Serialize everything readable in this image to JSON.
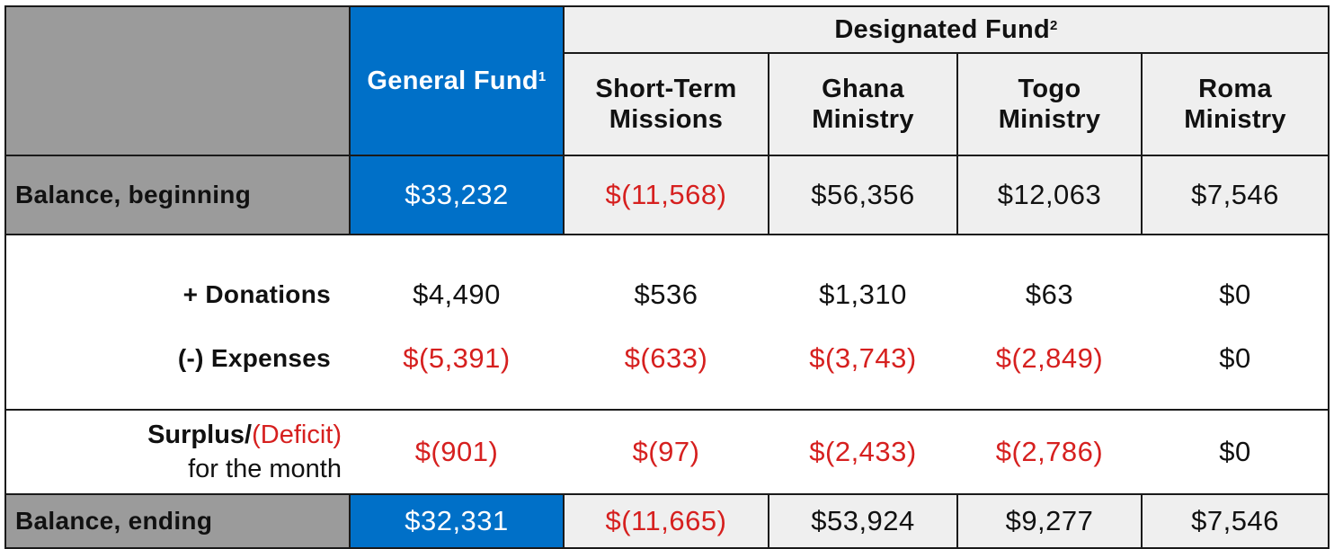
{
  "header": {
    "designated_fund": "Designated Fund",
    "designated_fund_sup": "2",
    "general_fund": "General Fund",
    "general_fund_sup": "1",
    "columns": [
      {
        "line1": "Short-Term",
        "line2": "Missions"
      },
      {
        "line1": "Ghana",
        "line2": "Ministry"
      },
      {
        "line1": "Togo",
        "line2": "Ministry"
      },
      {
        "line1": "Roma",
        "line2": "Ministry"
      }
    ]
  },
  "rows": {
    "balance_beginning": {
      "label": "Balance, beginning",
      "general": "$33,232",
      "values": [
        "$(11,568)",
        "$56,356",
        "$12,063",
        "$7,546"
      ]
    },
    "donations": {
      "label": "+  Donations",
      "general": "$4,490",
      "values": [
        "$536",
        "$1,310",
        "$63",
        "$0"
      ]
    },
    "expenses": {
      "label": "(-)  Expenses",
      "general": "$(5,391)",
      "values": [
        "$(633)",
        "$(3,743)",
        "$(2,849)",
        "$0"
      ]
    },
    "surplus": {
      "label_part1": "Surplus/",
      "label_part2": "(Deficit)",
      "label_line2": "for the month",
      "general": "$(901)",
      "values": [
        "$(97)",
        "$(2,433)",
        "$(2,786)",
        "$0"
      ]
    },
    "balance_ending": {
      "label": "Balance, ending",
      "general": "$32,331",
      "values": [
        "$(11,665)",
        "$53,924",
        "$9,277",
        "$7,546"
      ]
    }
  },
  "colors": {
    "header_grey": "#9b9b9b",
    "general_blue": "#0070c8",
    "light_cell": "#efefef",
    "negative_red": "#d6201f",
    "border": "#1a1a1a"
  }
}
